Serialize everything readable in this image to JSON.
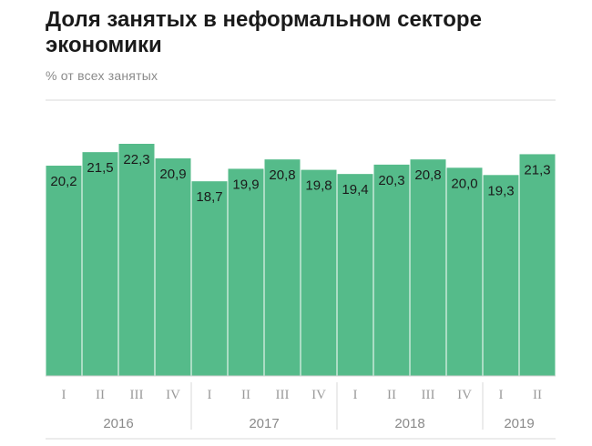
{
  "title": "Доля занятых в неформальном секторе экономики",
  "subtitle": "% от всех занятых",
  "chart_data": {
    "type": "bar",
    "title": "Доля занятых в неформальном секторе экономики",
    "subtitle": "% от всех занятых",
    "xlabel": "",
    "ylabel": "",
    "categories": [
      "I",
      "II",
      "III",
      "IV",
      "I",
      "II",
      "III",
      "IV",
      "I",
      "II",
      "III",
      "IV",
      "I",
      "II"
    ],
    "values": [
      20.2,
      21.5,
      22.3,
      20.9,
      18.7,
      19.9,
      20.8,
      19.8,
      19.4,
      20.3,
      20.8,
      20.0,
      19.3,
      21.3
    ],
    "value_labels": [
      "20,2",
      "21,5",
      "22,3",
      "20,9",
      "18,7",
      "19,9",
      "20,8",
      "19,8",
      "19,4",
      "20,3",
      "20,8",
      "20,0",
      "19,3",
      "21,3"
    ],
    "groups": [
      {
        "label": "2016",
        "count": 4
      },
      {
        "label": "2017",
        "count": 4
      },
      {
        "label": "2018",
        "count": 4
      },
      {
        "label": "2019",
        "count": 2
      }
    ],
    "ylim": [
      0,
      25
    ],
    "bar_color": "#55bb8a",
    "grid": false,
    "legend": "none"
  }
}
